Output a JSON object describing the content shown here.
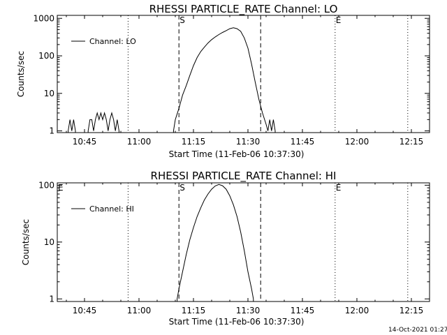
{
  "footer_timestamp": "14-Oct-2021 01:27",
  "colors": {
    "background": "#ffffff",
    "foreground": "#000000"
  },
  "chart_data": [
    {
      "type": "line",
      "title": "RHESSI PARTICLE_RATE Channel: LO",
      "xlabel": "Start Time (11-Feb-06 10:37:30)",
      "ylabel": "Counts/sec",
      "y_scale": "log",
      "ylim": [
        0.9,
        1200
      ],
      "xlim": [
        "10:37:30",
        "12:20:00"
      ],
      "x_ticks": [
        "10:45",
        "11:00",
        "11:15",
        "11:30",
        "11:45",
        "12:00",
        "12:15"
      ],
      "y_ticks": [
        "1",
        "10",
        "100",
        "1000"
      ],
      "legend": {
        "position": "top-left",
        "entries": [
          "Channel: LO"
        ]
      },
      "markers": [
        {
          "label": "S",
          "time": "11:11:00",
          "style": "dashed"
        },
        {
          "label": "",
          "time": "11:33:30",
          "style": "dashed"
        },
        {
          "label": "",
          "time": "10:57:00",
          "style": "dotted"
        },
        {
          "label": "E",
          "time": "11:54:00",
          "style": "dotted"
        },
        {
          "label": "",
          "time": "12:14:00",
          "style": "dotted"
        }
      ],
      "series": [
        {
          "name": "Channel: LO",
          "points": [
            [
              "10:40:30",
              1
            ],
            [
              "10:41:00",
              2
            ],
            [
              "10:41:30",
              1
            ],
            [
              "10:42:00",
              2
            ],
            [
              "10:42:30",
              1
            ],
            [
              "10:46:00",
              1
            ],
            [
              "10:46:30",
              2
            ],
            [
              "10:47:00",
              2
            ],
            [
              "10:47:30",
              1
            ],
            [
              "10:48:00",
              2
            ],
            [
              "10:48:30",
              3
            ],
            [
              "10:49:00",
              2
            ],
            [
              "10:49:30",
              3
            ],
            [
              "10:50:00",
              2
            ],
            [
              "10:50:30",
              3
            ],
            [
              "10:51:00",
              2
            ],
            [
              "10:51:30",
              1
            ],
            [
              "10:52:00",
              2
            ],
            [
              "10:52:30",
              3
            ],
            [
              "10:53:00",
              2
            ],
            [
              "10:53:30",
              1
            ],
            [
              "10:54:00",
              2
            ],
            [
              "10:54:30",
              1
            ],
            [
              "11:09:30",
              1
            ],
            [
              "11:10:00",
              2
            ],
            [
              "11:11:00",
              4
            ],
            [
              "11:12:00",
              9
            ],
            [
              "11:13:00",
              16
            ],
            [
              "11:14:00",
              30
            ],
            [
              "11:15:00",
              55
            ],
            [
              "11:16:00",
              90
            ],
            [
              "11:17:00",
              130
            ],
            [
              "11:18:00",
              170
            ],
            [
              "11:19:00",
              220
            ],
            [
              "11:20:00",
              270
            ],
            [
              "11:21:00",
              320
            ],
            [
              "11:22:00",
              370
            ],
            [
              "11:23:00",
              420
            ],
            [
              "11:24:00",
              470
            ],
            [
              "11:25:00",
              530
            ],
            [
              "11:26:00",
              560
            ],
            [
              "11:27:00",
              530
            ],
            [
              "11:28:00",
              450
            ],
            [
              "11:29:00",
              300
            ],
            [
              "11:30:00",
              160
            ],
            [
              "11:31:00",
              60
            ],
            [
              "11:32:00",
              20
            ],
            [
              "11:33:00",
              7
            ],
            [
              "11:34:00",
              3
            ],
            [
              "11:35:00",
              1.5
            ],
            [
              "11:35:30",
              1
            ],
            [
              "11:36:00",
              2
            ],
            [
              "11:36:30",
              1
            ],
            [
              "11:37:00",
              2
            ],
            [
              "11:37:30",
              1
            ]
          ]
        }
      ]
    },
    {
      "type": "line",
      "title": "RHESSI PARTICLE_RATE Channel: HI",
      "xlabel": "Start Time (11-Feb-06 10:37:30)",
      "ylabel": "Counts/sec",
      "y_scale": "log",
      "ylim": [
        0.9,
        110
      ],
      "xlim": [
        "10:37:30",
        "12:20:00"
      ],
      "x_ticks": [
        "10:45",
        "11:00",
        "11:15",
        "11:30",
        "11:45",
        "12:00",
        "12:15"
      ],
      "y_ticks": [
        "1",
        "10",
        "100"
      ],
      "legend": {
        "position": "top-left",
        "entries": [
          "Channel: HI"
        ]
      },
      "markers": [
        {
          "label": "E",
          "time": "10:37:30",
          "style": "none"
        },
        {
          "label": "S",
          "time": "11:11:00",
          "style": "dashed"
        },
        {
          "label": "",
          "time": "11:33:30",
          "style": "dashed"
        },
        {
          "label": "",
          "time": "10:57:00",
          "style": "dotted"
        },
        {
          "label": "E",
          "time": "11:54:00",
          "style": "dotted"
        },
        {
          "label": "",
          "time": "12:14:00",
          "style": "dotted"
        }
      ],
      "series": [
        {
          "name": "Channel: HI",
          "points": [
            [
              "11:10:30",
              1
            ],
            [
              "11:11:00",
              1.5
            ],
            [
              "11:12:00",
              3
            ],
            [
              "11:13:00",
              6
            ],
            [
              "11:14:00",
              11
            ],
            [
              "11:15:00",
              18
            ],
            [
              "11:16:00",
              28
            ],
            [
              "11:17:00",
              40
            ],
            [
              "11:18:00",
              55
            ],
            [
              "11:19:00",
              70
            ],
            [
              "11:20:00",
              85
            ],
            [
              "11:21:00",
              97
            ],
            [
              "11:22:00",
              103
            ],
            [
              "11:23:00",
              98
            ],
            [
              "11:24:00",
              85
            ],
            [
              "11:25:00",
              65
            ],
            [
              "11:26:00",
              45
            ],
            [
              "11:27:00",
              28
            ],
            [
              "11:28:00",
              15
            ],
            [
              "11:29:00",
              7
            ],
            [
              "11:30:00",
              3
            ],
            [
              "11:31:00",
              1.5
            ],
            [
              "11:31:30",
              1
            ]
          ]
        }
      ]
    }
  ]
}
